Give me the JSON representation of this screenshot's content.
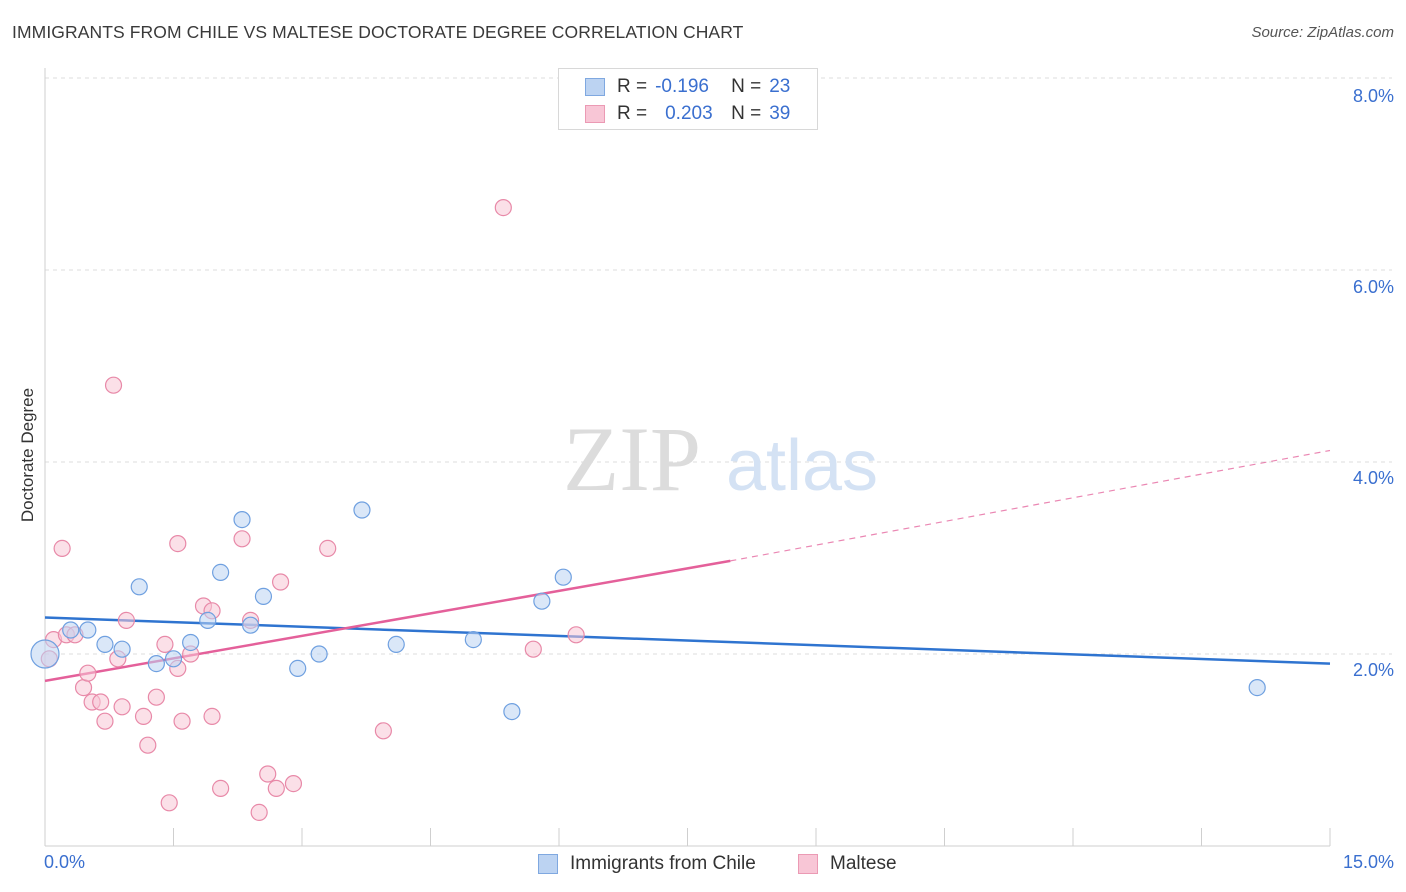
{
  "title": "IMMIGRANTS FROM CHILE VS MALTESE DOCTORATE DEGREE CORRELATION CHART",
  "source": "Source: ZipAtlas.com",
  "watermark": {
    "zip": "ZIP",
    "atlas": "atlas"
  },
  "legend": [
    {
      "r_label": "R =",
      "r_value": "-0.196",
      "n_label": "N =",
      "n_value": "23",
      "color": "#a9c8f0"
    },
    {
      "r_label": "R =",
      "r_value": "0.203",
      "n_label": "N =",
      "n_value": "39",
      "color": "#f5b8cc"
    }
  ],
  "chart_data": {
    "type": "scatter",
    "title": "IMMIGRANTS FROM CHILE VS MALTESE DOCTORATE DEGREE CORRELATION CHART",
    "ylabel": "Doctorate Degree",
    "xlabel": "",
    "xlim": [
      0,
      15
    ],
    "ylim": [
      0,
      8
    ],
    "x_tick_labels": [
      "0.0%",
      "15.0%"
    ],
    "y_tick_labels": [
      "2.0%",
      "4.0%",
      "6.0%",
      "8.0%"
    ],
    "y_ticks": [
      2,
      4,
      6,
      8
    ],
    "grid": true,
    "legend_position": "top-center",
    "series": [
      {
        "name": "Immigrants from Chile",
        "color": "#6fa0e0",
        "fill": "#bcd3f2",
        "points": [
          [
            0.0,
            2.0
          ],
          [
            0.3,
            2.25
          ],
          [
            0.5,
            2.25
          ],
          [
            0.7,
            2.1
          ],
          [
            0.9,
            2.05
          ],
          [
            1.1,
            2.7
          ],
          [
            1.3,
            1.9
          ],
          [
            1.5,
            1.95
          ],
          [
            1.7,
            2.12
          ],
          [
            1.9,
            2.35
          ],
          [
            2.05,
            2.85
          ],
          [
            2.3,
            3.4
          ],
          [
            2.4,
            2.3
          ],
          [
            2.55,
            2.6
          ],
          [
            2.95,
            1.85
          ],
          [
            3.2,
            2.0
          ],
          [
            3.7,
            3.5
          ],
          [
            4.1,
            2.1
          ],
          [
            5.0,
            2.15
          ],
          [
            5.45,
            1.4
          ],
          [
            5.8,
            2.55
          ],
          [
            6.05,
            2.8
          ],
          [
            14.15,
            1.65
          ]
        ],
        "trend": {
          "x": [
            0,
            15
          ],
          "y": [
            2.38,
            1.9
          ]
        }
      },
      {
        "name": "Maltese",
        "color": "#e889a8",
        "fill": "#f8c6d6",
        "points": [
          [
            0.05,
            1.95
          ],
          [
            0.1,
            2.15
          ],
          [
            0.2,
            3.1
          ],
          [
            0.25,
            2.2
          ],
          [
            0.35,
            2.2
          ],
          [
            0.45,
            1.65
          ],
          [
            0.5,
            1.8
          ],
          [
            0.55,
            1.5
          ],
          [
            0.65,
            1.5
          ],
          [
            0.7,
            1.3
          ],
          [
            0.85,
            1.95
          ],
          [
            0.9,
            1.45
          ],
          [
            0.95,
            2.35
          ],
          [
            0.8,
            4.8
          ],
          [
            1.15,
            1.35
          ],
          [
            1.2,
            1.05
          ],
          [
            1.3,
            1.55
          ],
          [
            1.4,
            2.1
          ],
          [
            1.45,
            0.45
          ],
          [
            1.55,
            1.85
          ],
          [
            1.55,
            3.15
          ],
          [
            1.6,
            1.3
          ],
          [
            1.7,
            2.0
          ],
          [
            1.85,
            2.5
          ],
          [
            1.95,
            2.45
          ],
          [
            1.95,
            1.35
          ],
          [
            2.05,
            0.6
          ],
          [
            2.3,
            3.2
          ],
          [
            2.4,
            2.35
          ],
          [
            2.5,
            0.35
          ],
          [
            2.6,
            0.75
          ],
          [
            2.7,
            0.6
          ],
          [
            2.75,
            2.75
          ],
          [
            2.9,
            0.65
          ],
          [
            3.3,
            3.1
          ],
          [
            3.95,
            1.2
          ],
          [
            5.35,
            6.65
          ],
          [
            5.7,
            2.05
          ],
          [
            6.2,
            2.2
          ]
        ],
        "trend": {
          "x": [
            0,
            8.0
          ],
          "y": [
            1.72,
            2.97
          ]
        },
        "trend_dashed": {
          "x": [
            8.0,
            15
          ],
          "y": [
            2.97,
            4.12
          ]
        }
      }
    ]
  }
}
